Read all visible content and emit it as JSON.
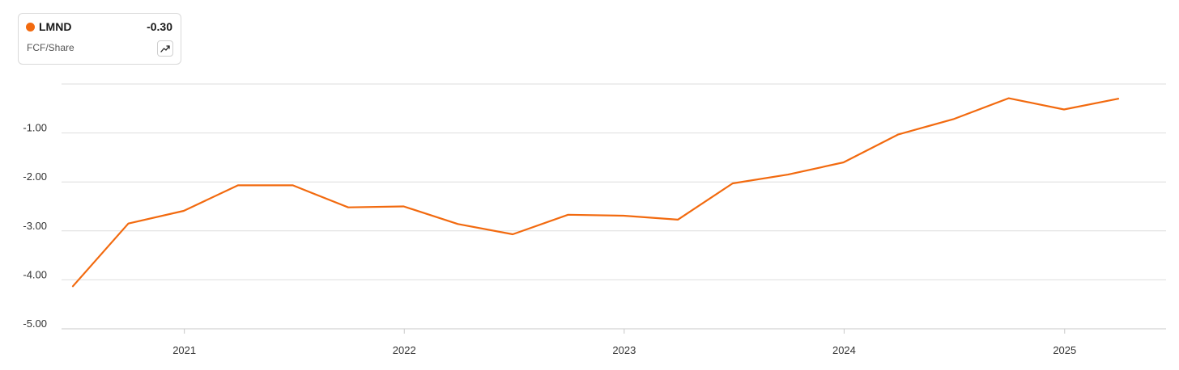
{
  "legend": {
    "ticker": "LMND",
    "value": "-0.30",
    "metric": "FCF/Share",
    "trend_icon": "trending-up-icon"
  },
  "colors": {
    "series": "#f26a0f",
    "grid": "#dedede",
    "axis": "#c8c8c8"
  },
  "chart_data": {
    "type": "line",
    "title": "",
    "xlabel": "",
    "ylabel": "",
    "grid": true,
    "legend_placement": "top-left",
    "y_ticks": [
      -1,
      -2,
      -3,
      -4,
      -5
    ],
    "y_tick_labels": [
      "-1.00",
      "-2.00",
      "-3.00",
      "-4.00",
      "-5.00"
    ],
    "ylim": [
      -5.0,
      0.0
    ],
    "x_tick_labels": [
      "2021",
      "2022",
      "2023",
      "2024",
      "2025"
    ],
    "xlim": [
      "2020-06-01",
      "2025-08-15"
    ],
    "series": [
      {
        "name": "LMND",
        "points": [
          {
            "x": "2020-06-30",
            "y": -4.13
          },
          {
            "x": "2020-09-30",
            "y": -2.85
          },
          {
            "x": "2020-12-31",
            "y": -2.59
          },
          {
            "x": "2021-03-31",
            "y": -2.07
          },
          {
            "x": "2021-06-30",
            "y": -2.07
          },
          {
            "x": "2021-09-30",
            "y": -2.52
          },
          {
            "x": "2021-12-31",
            "y": -2.5
          },
          {
            "x": "2022-03-31",
            "y": -2.86
          },
          {
            "x": "2022-06-30",
            "y": -3.07
          },
          {
            "x": "2022-09-30",
            "y": -2.67
          },
          {
            "x": "2022-12-31",
            "y": -2.69
          },
          {
            "x": "2023-03-31",
            "y": -2.77
          },
          {
            "x": "2023-06-30",
            "y": -2.03
          },
          {
            "x": "2023-09-30",
            "y": -1.85
          },
          {
            "x": "2023-12-31",
            "y": -1.6
          },
          {
            "x": "2024-03-31",
            "y": -1.03
          },
          {
            "x": "2024-06-30",
            "y": -0.72
          },
          {
            "x": "2024-09-30",
            "y": -0.29
          },
          {
            "x": "2024-12-31",
            "y": -0.52
          },
          {
            "x": "2025-03-31",
            "y": -0.3
          }
        ]
      }
    ]
  }
}
